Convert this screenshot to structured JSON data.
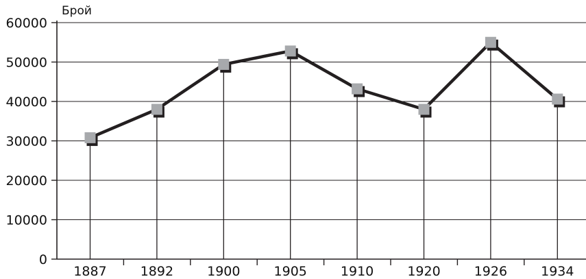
{
  "chart_data": {
    "type": "line",
    "title": "",
    "xlabel": "",
    "ylabel": "Брой",
    "categories": [
      "1887",
      "1892",
      "1900",
      "1905",
      "1910",
      "1920",
      "1926",
      "1934"
    ],
    "series": [
      {
        "values": [
          30800,
          38000,
          49400,
          52800,
          43200,
          38000,
          55000,
          40600
        ]
      }
    ],
    "ylim": [
      0,
      60000
    ],
    "yticks": [
      "0",
      "10000",
      "20000",
      "30000",
      "40000",
      "50000",
      "60000"
    ],
    "grid": true,
    "drop_lines": true,
    "legend": "none",
    "colors": {
      "line": "#231f20",
      "marker": "#a7a9ac",
      "marker_shadow": "#231f20",
      "grid": "#231f20",
      "axis": "#231f20"
    }
  }
}
